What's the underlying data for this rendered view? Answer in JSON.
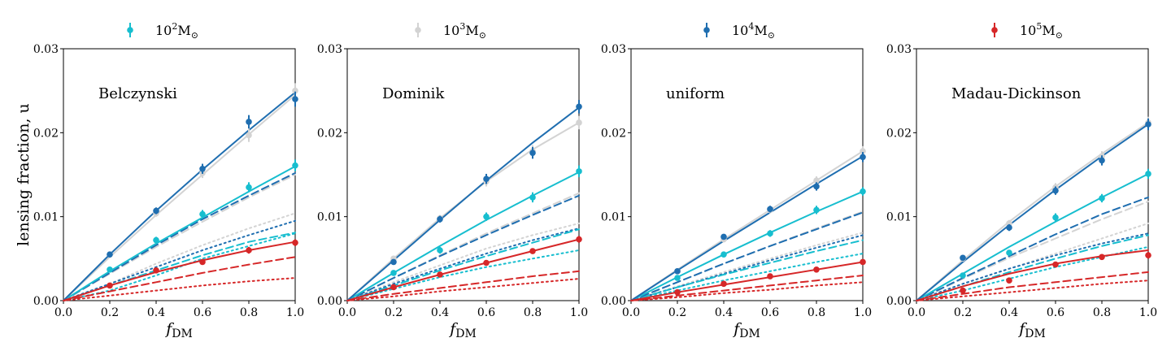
{
  "colors": {
    "1e2": "#17becf",
    "1e3": "#d3d3d3",
    "1e4": "#1f6eb0",
    "1e5": "#d62728"
  },
  "legend": [
    {
      "key": "1e2",
      "base": "10",
      "exp": "2",
      "sub": "M",
      "sym": "⊙"
    },
    {
      "key": "1e3",
      "base": "10",
      "exp": "3",
      "sub": "M",
      "sym": "⊙"
    },
    {
      "key": "1e4",
      "base": "10",
      "exp": "4",
      "sub": "M",
      "sym": "⊙"
    },
    {
      "key": "1e5",
      "base": "10",
      "exp": "5",
      "sub": "M",
      "sym": "⊙"
    }
  ],
  "axes": {
    "xlabel_main": "f",
    "xlabel_sub": "DM",
    "ylabel": "lensing fraction, u",
    "xlim": [
      0,
      1
    ],
    "ylim": [
      0,
      0.03
    ],
    "xticks": [
      "0.0",
      "0.2",
      "0.4",
      "0.6",
      "0.8",
      "1.0"
    ],
    "yticks": [
      "0.00",
      "0.01",
      "0.02",
      "0.03"
    ],
    "xtick_values": [
      0,
      0.2,
      0.4,
      0.6,
      0.8,
      1.0
    ],
    "ytick_values": [
      0,
      0.01,
      0.02,
      0.03
    ]
  },
  "chart_data": [
    {
      "type": "line",
      "panel_label": "Belczynski",
      "x": [
        0.2,
        0.4,
        0.6,
        0.8,
        1.0
      ],
      "series": [
        {
          "key": "1e2",
          "points": [
            0.0037,
            0.0072,
            0.0103,
            0.0135,
            0.0161
          ],
          "err": [
            0.0002,
            0.0004,
            0.0005,
            0.0006,
            0.0007
          ],
          "solid": [
            0,
            0.0035,
            0.0068,
            0.0099,
            0.013,
            0.016
          ],
          "dashed": [
            0,
            0.0018,
            0.0036,
            0.0054,
            0.007,
            0.0081
          ],
          "dotted": [
            0,
            0.0012,
            0.003,
            0.005,
            0.0065,
            0.008
          ]
        },
        {
          "key": "1e3",
          "points": [
            0.0055,
            0.0104,
            0.0152,
            0.0197,
            0.025
          ],
          "err": [
            0.0003,
            0.0004,
            0.0006,
            0.0008,
            0.0009
          ],
          "solid": [
            0,
            0.0052,
            0.0102,
            0.015,
            0.0198,
            0.0245
          ],
          "dashed": [
            0,
            0.0032,
            0.0064,
            0.0094,
            0.0123,
            0.015
          ],
          "dotted": [
            0,
            0.002,
            0.0044,
            0.0066,
            0.0086,
            0.0104
          ]
        },
        {
          "key": "1e4",
          "points": [
            0.0055,
            0.0107,
            0.0157,
            0.0213,
            0.024
          ],
          "err": [
            0.0003,
            0.0004,
            0.0006,
            0.0008,
            0.0009
          ],
          "solid": [
            0,
            0.0055,
            0.0107,
            0.0156,
            0.0203,
            0.0248
          ],
          "dashed": [
            0,
            0.0033,
            0.0066,
            0.0097,
            0.0125,
            0.0152
          ],
          "dotted": [
            0,
            0.002,
            0.004,
            0.006,
            0.0078,
            0.0095
          ]
        },
        {
          "key": "1e5",
          "points": [
            0.0018,
            0.0036,
            0.0046,
            0.006,
            0.0069
          ],
          "err": [
            0.0002,
            0.0002,
            0.0003,
            0.0004,
            0.0004
          ],
          "solid": [
            0,
            0.0018,
            0.0034,
            0.0048,
            0.006,
            0.007
          ],
          "dashed": [
            0,
            0.0011,
            0.0022,
            0.0033,
            0.0043,
            0.0052
          ],
          "dotted": [
            0,
            0.0006,
            0.0012,
            0.0018,
            0.0023,
            0.0027
          ]
        }
      ]
    },
    {
      "type": "line",
      "panel_label": "Dominik",
      "x": [
        0.2,
        0.4,
        0.6,
        0.8,
        1.0
      ],
      "series": [
        {
          "key": "1e2",
          "points": [
            0.0033,
            0.006,
            0.01,
            0.0123,
            0.0154
          ],
          "err": [
            0.0002,
            0.0004,
            0.0005,
            0.0006,
            0.0007
          ],
          "solid": [
            0,
            0.0033,
            0.0065,
            0.0096,
            0.0125,
            0.0153
          ],
          "dashed": [
            0,
            0.0018,
            0.0036,
            0.0053,
            0.0069,
            0.0085
          ],
          "dotted": [
            0,
            0.0014,
            0.0028,
            0.004,
            0.005,
            0.006
          ]
        },
        {
          "key": "1e3",
          "points": [
            0.005,
            0.0098,
            0.0142,
            0.0178,
            0.0212
          ],
          "err": [
            0.0003,
            0.0004,
            0.0006,
            0.0007,
            0.0008
          ],
          "solid": [
            0,
            0.005,
            0.0098,
            0.0142,
            0.018,
            0.0212
          ],
          "dashed": [
            0,
            0.0027,
            0.0054,
            0.008,
            0.0104,
            0.0128
          ],
          "dotted": [
            0,
            0.0022,
            0.0042,
            0.0062,
            0.0078,
            0.0092
          ]
        },
        {
          "key": "1e4",
          "points": [
            0.0046,
            0.0097,
            0.0145,
            0.0176,
            0.0231
          ],
          "err": [
            0.0003,
            0.0004,
            0.0006,
            0.0007,
            0.0008
          ],
          "solid": [
            0,
            0.0048,
            0.0096,
            0.0143,
            0.0188,
            0.023
          ],
          "dashed": [
            0,
            0.0027,
            0.0053,
            0.0078,
            0.0102,
            0.0125
          ],
          "dotted": [
            0,
            0.002,
            0.0038,
            0.0056,
            0.0072,
            0.0086
          ]
        },
        {
          "key": "1e5",
          "points": [
            0.0016,
            0.0031,
            0.0045,
            0.0059,
            0.0073
          ],
          "err": [
            0.0002,
            0.0002,
            0.0003,
            0.0003,
            0.0004
          ],
          "solid": [
            0,
            0.0016,
            0.0031,
            0.0045,
            0.0059,
            0.0073
          ],
          "dashed": [
            0,
            0.0008,
            0.0015,
            0.0022,
            0.0029,
            0.0035
          ],
          "dotted": [
            0,
            0.0005,
            0.0011,
            0.0016,
            0.0021,
            0.0026
          ]
        }
      ]
    },
    {
      "type": "line",
      "panel_label": "uniform",
      "x": [
        0.2,
        0.4,
        0.6,
        0.8,
        1.0
      ],
      "series": [
        {
          "key": "1e2",
          "points": [
            0.0027,
            0.0055,
            0.008,
            0.0108,
            0.013
          ],
          "err": [
            0.0002,
            0.0003,
            0.0004,
            0.0005,
            0.0005
          ],
          "solid": [
            0,
            0.0028,
            0.0055,
            0.0081,
            0.0106,
            0.013
          ],
          "dashed": [
            0,
            0.0016,
            0.0031,
            0.0045,
            0.0059,
            0.0072
          ],
          "dotted": [
            0,
            0.0012,
            0.0024,
            0.0035,
            0.0046,
            0.0056
          ]
        },
        {
          "key": "1e3",
          "points": [
            0.0035,
            0.0073,
            0.0108,
            0.0143,
            0.0178
          ],
          "err": [
            0.0002,
            0.0003,
            0.0004,
            0.0005,
            0.0006
          ],
          "solid": [
            0,
            0.0037,
            0.0073,
            0.0108,
            0.0143,
            0.0178
          ],
          "dashed": [
            0,
            0.0022,
            0.0044,
            0.0065,
            0.0086,
            0.0106
          ],
          "dotted": [
            0,
            0.0017,
            0.0034,
            0.005,
            0.0066,
            0.0081
          ]
        },
        {
          "key": "1e4",
          "points": [
            0.0035,
            0.0076,
            0.0109,
            0.0136,
            0.0171
          ],
          "err": [
            0.0002,
            0.0003,
            0.0004,
            0.0005,
            0.0006
          ],
          "solid": [
            0,
            0.0036,
            0.0071,
            0.0105,
            0.0139,
            0.0172
          ],
          "dashed": [
            0,
            0.0022,
            0.0044,
            0.0065,
            0.0085,
            0.0105
          ],
          "dotted": [
            0,
            0.0016,
            0.0032,
            0.0048,
            0.0063,
            0.0078
          ]
        },
        {
          "key": "1e5",
          "points": [
            0.001,
            0.002,
            0.0029,
            0.0037,
            0.0046
          ],
          "err": [
            0.0001,
            0.0001,
            0.0002,
            0.0002,
            0.0003
          ],
          "solid": [
            0,
            0.001,
            0.0019,
            0.0028,
            0.0037,
            0.0046
          ],
          "dashed": [
            0,
            0.0006,
            0.0012,
            0.0018,
            0.0024,
            0.003
          ],
          "dotted": [
            0,
            0.0004,
            0.0009,
            0.0013,
            0.0018,
            0.0022
          ]
        }
      ]
    },
    {
      "type": "line",
      "panel_label": "Madau-Dickinson",
      "x": [
        0.2,
        0.4,
        0.6,
        0.8,
        1.0
      ],
      "series": [
        {
          "key": "1e2",
          "points": [
            0.003,
            0.0057,
            0.0099,
            0.0122,
            0.0151
          ],
          "err": [
            0.0002,
            0.0003,
            0.0005,
            0.0005,
            0.0006
          ],
          "solid": [
            0,
            0.0032,
            0.0064,
            0.0094,
            0.0123,
            0.0151
          ],
          "dashed": [
            0,
            0.0017,
            0.0034,
            0.005,
            0.0065,
            0.0078
          ],
          "dotted": [
            0,
            0.0012,
            0.0026,
            0.004,
            0.0052,
            0.0064
          ]
        },
        {
          "key": "1e3",
          "points": [
            0.005,
            0.0092,
            0.0135,
            0.0172,
            0.0212
          ],
          "err": [
            0.0003,
            0.0004,
            0.0005,
            0.0006,
            0.0007
          ],
          "solid": [
            0,
            0.0048,
            0.0094,
            0.0136,
            0.0175,
            0.0212
          ],
          "dashed": [
            0,
            0.0026,
            0.0051,
            0.0074,
            0.0097,
            0.0118
          ],
          "dotted": [
            0,
            0.002,
            0.0038,
            0.0056,
            0.0074,
            0.0092
          ]
        },
        {
          "key": "1e4",
          "points": [
            0.0051,
            0.0087,
            0.0131,
            0.0167,
            0.021
          ],
          "err": [
            0.0003,
            0.0004,
            0.0005,
            0.0006,
            0.0007
          ],
          "solid": [
            0,
            0.0046,
            0.009,
            0.0132,
            0.0172,
            0.021
          ],
          "dashed": [
            0,
            0.0027,
            0.0053,
            0.0079,
            0.0103,
            0.0123
          ],
          "dotted": [
            0,
            0.002,
            0.0038,
            0.0054,
            0.0068,
            0.008
          ]
        },
        {
          "key": "1e5",
          "points": [
            0.0012,
            0.0024,
            0.0043,
            0.0052,
            0.0054
          ],
          "err": [
            0.0002,
            0.0002,
            0.0003,
            0.0003,
            0.0004
          ],
          "solid": [
            0,
            0.0017,
            0.0032,
            0.0044,
            0.0053,
            0.006
          ],
          "dashed": [
            0,
            0.0008,
            0.0016,
            0.0022,
            0.0028,
            0.0034
          ],
          "dotted": [
            0,
            0.0005,
            0.001,
            0.0015,
            0.002,
            0.0024
          ]
        }
      ]
    }
  ]
}
